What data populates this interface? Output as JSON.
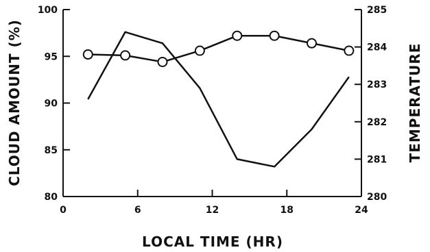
{
  "chart_data": {
    "type": "line",
    "title": "",
    "xlabel": "LOCAL TIME (HR)",
    "ylabel_left": "CLOUD AMOUNT (%)",
    "ylabel_right": "TEMPERATURE",
    "xlim": [
      0,
      24
    ],
    "ylim_left": [
      80,
      100
    ],
    "ylim_right": [
      280,
      285
    ],
    "x_ticks": [
      0,
      6,
      12,
      18,
      24
    ],
    "y_left_ticks": [
      80,
      85,
      90,
      95,
      100
    ],
    "y_right_ticks": [
      280,
      281,
      282,
      283,
      284,
      285
    ],
    "grid": false,
    "series": [
      {
        "axis": "left",
        "marker": "circle",
        "x": [
          2,
          5,
          8,
          11,
          14,
          17,
          20,
          23
        ],
        "values": [
          95.2,
          95.1,
          94.4,
          95.6,
          97.2,
          97.2,
          96.4,
          95.6
        ]
      },
      {
        "axis": "right",
        "marker": "none",
        "x": [
          2,
          5,
          8,
          11,
          14,
          17,
          20,
          23
        ],
        "values": [
          282.6,
          284.4,
          284.1,
          282.9,
          281.0,
          280.8,
          281.8,
          283.2
        ]
      }
    ]
  }
}
